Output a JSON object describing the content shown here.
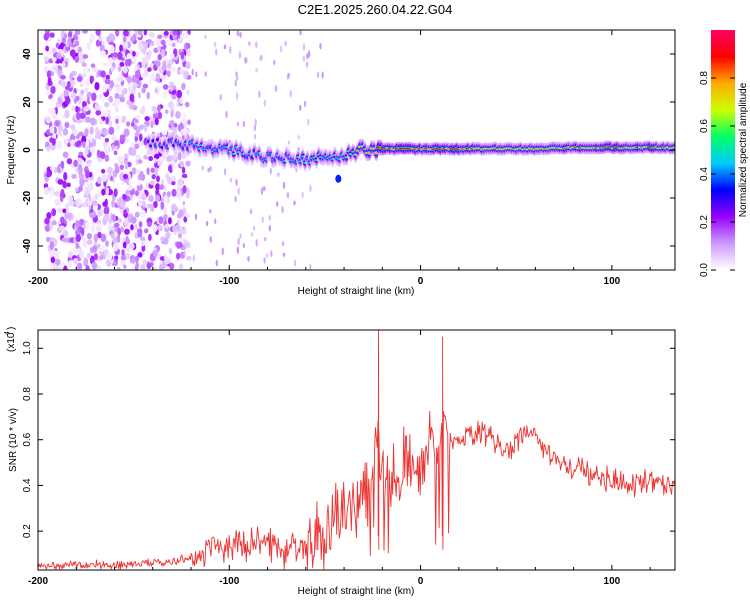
{
  "title": "C2E1.2025.260.04.22.G04",
  "chart_data": [
    {
      "type": "heatmap",
      "xlabel": "Height of straight line (km)",
      "ylabel": "Frequency (Hz)",
      "xlim": [
        -200,
        133
      ],
      "ylim": [
        -50,
        50
      ],
      "xticks": [
        -200,
        -100,
        0,
        100
      ],
      "xtick_labels": [
        "-200",
        "-100",
        "0",
        "100"
      ],
      "yticks": [
        -40,
        -20,
        0,
        20,
        40
      ],
      "ytick_labels": [
        "-40",
        "-20",
        "0",
        "20",
        "40"
      ],
      "colorbar": {
        "label": "Normalized spectral amplitude",
        "range": [
          0,
          1
        ],
        "ticks": [
          0.0,
          0.2,
          0.4,
          0.6,
          0.8
        ],
        "tick_labels": [
          "0.0",
          "0.2",
          "0.4",
          "0.6",
          "0.8"
        ],
        "colors": [
          "#ffffff",
          "#cc99ff",
          "#9900ff",
          "#0000ff",
          "#00ccff",
          "#00ff66",
          "#ccff00",
          "#ffaa00",
          "#ff0000",
          "#ff0066"
        ]
      },
      "ridge": {
        "name": "dominant frequency trace",
        "x": [
          -140,
          -120,
          -100,
          -80,
          -60,
          -40,
          -30,
          -20,
          0,
          20,
          40,
          60,
          80,
          100,
          120,
          133
        ],
        "y": [
          3,
          2,
          0,
          -3,
          -4,
          -2,
          0,
          0.5,
          0.5,
          0.5,
          0.5,
          0.5,
          1,
          1,
          1,
          1
        ],
        "amplitude": [
          0.4,
          0.45,
          0.5,
          0.45,
          0.5,
          0.55,
          0.7,
          0.9,
          0.95,
          0.9,
          0.75,
          0.75,
          0.8,
          0.9,
          0.85,
          0.8
        ]
      },
      "noise_region_x": [
        -200,
        -125
      ]
    },
    {
      "type": "line",
      "xlabel": "Height of straight line (km)",
      "ylabel": "SNR (10 * v/v)",
      "scale_label": "(x10",
      "scale_exp": "4",
      "scale_close": ")",
      "xlim": [
        -200,
        133
      ],
      "ylim": [
        0.03,
        1.08
      ],
      "xticks": [
        -200,
        -100,
        0,
        100
      ],
      "xtick_labels": [
        "-200",
        "-100",
        "0",
        "100"
      ],
      "yticks": [
        0.2,
        0.4,
        0.6,
        0.8,
        1.0
      ],
      "ytick_labels": [
        "0.2",
        "0.4",
        "0.6",
        "0.8",
        "1.0"
      ],
      "series": [
        {
          "name": "SNR",
          "color": "#ee3333",
          "x": [
            -200,
            -180,
            -160,
            -140,
            -120,
            -110,
            -100,
            -90,
            -80,
            -70,
            -60,
            -50,
            -40,
            -35,
            -30,
            -25,
            -23,
            -20,
            -15,
            -10,
            -5,
            0,
            5,
            10,
            12,
            15,
            20,
            25,
            30,
            35,
            40,
            45,
            50,
            55,
            58,
            60,
            65,
            70,
            75,
            80,
            90,
            100,
            110,
            120,
            133
          ],
          "y": [
            0.05,
            0.05,
            0.05,
            0.06,
            0.08,
            0.12,
            0.14,
            0.13,
            0.14,
            0.12,
            0.15,
            0.22,
            0.28,
            0.32,
            0.36,
            0.4,
            0.7,
            0.42,
            0.46,
            0.48,
            0.5,
            0.52,
            0.54,
            0.58,
            0.75,
            0.58,
            0.6,
            0.62,
            0.64,
            0.62,
            0.58,
            0.55,
            0.58,
            0.62,
            0.66,
            0.62,
            0.56,
            0.52,
            0.5,
            0.48,
            0.44,
            0.42,
            0.4,
            0.42,
            0.4
          ],
          "spikes": [
            {
              "x": -22,
              "y": 1.08
            },
            {
              "x": 11.5,
              "y": 1.05
            }
          ]
        }
      ]
    }
  ]
}
